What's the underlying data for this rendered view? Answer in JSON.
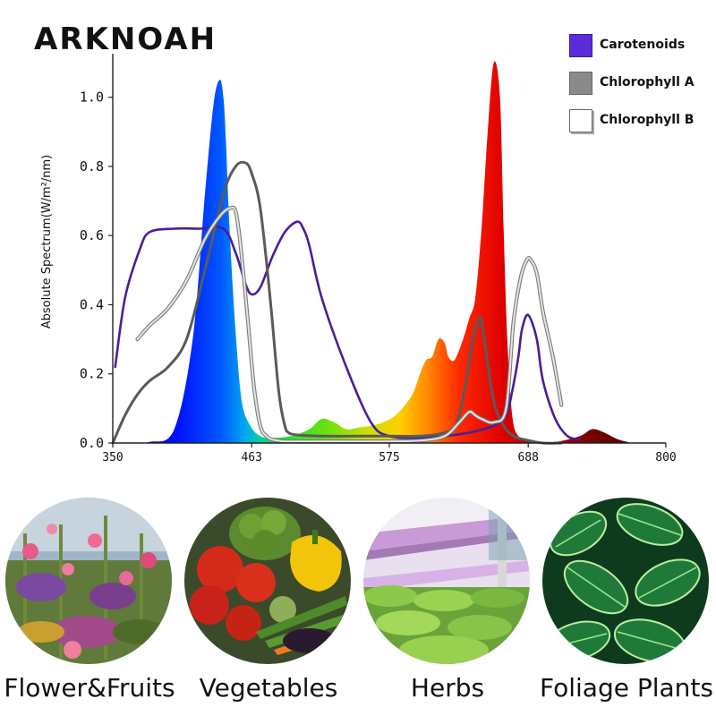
{
  "brand": "ARKNOAH",
  "legend": [
    {
      "label": "Carotenoids",
      "color": "#5a2bd8"
    },
    {
      "label": "Chlorophyll A",
      "color": "#8a8a8a"
    },
    {
      "label": "Chlorophyll B",
      "color": "#ffffff"
    }
  ],
  "categories": [
    {
      "label": "Flower&Fruits",
      "icon": "flower-photo"
    },
    {
      "label": "Vegetables",
      "icon": "vegetables-photo"
    },
    {
      "label": "Herbs",
      "icon": "herbs-photo"
    },
    {
      "label": "Foliage Plants",
      "icon": "foliage-photo"
    }
  ],
  "chart_data": {
    "type": "area",
    "title": "",
    "xlabel": "",
    "ylabel": "Absolute Spectrum(W/m²/nm)",
    "xlim": [
      350,
      800
    ],
    "ylim": [
      0,
      1.1
    ],
    "x_ticks": [
      "350",
      "463",
      "575",
      "688",
      "800"
    ],
    "y_ticks": [
      "0.0",
      "0.2",
      "0.4",
      "0.6",
      "0.8",
      "1.0"
    ],
    "grid": false,
    "legend_position": "top-right",
    "series": [
      {
        "name": "",
        "kind": "led-spectrum-fill",
        "x": [
          360,
          380,
          400,
          415,
          425,
          432,
          437,
          440,
          442,
          445,
          450,
          455,
          462,
          470,
          480,
          495,
          510,
          520,
          530,
          540,
          550,
          560,
          570,
          580,
          590,
          595,
          600,
          605,
          610,
          615,
          620,
          623,
          628,
          635,
          640,
          645,
          650,
          655,
          660,
          665,
          668,
          671,
          675,
          680,
          688,
          695,
          710,
          730,
          740,
          750,
          760,
          770
        ],
        "y": [
          0,
          0.003,
          0.04,
          0.3,
          0.72,
          0.98,
          1.05,
          1.0,
          0.88,
          0.62,
          0.32,
          0.12,
          0.05,
          0.02,
          0.015,
          0.02,
          0.04,
          0.07,
          0.06,
          0.04,
          0.045,
          0.05,
          0.06,
          0.08,
          0.12,
          0.15,
          0.2,
          0.24,
          0.25,
          0.3,
          0.29,
          0.25,
          0.24,
          0.3,
          0.36,
          0.42,
          0.62,
          0.9,
          1.1,
          1.0,
          0.62,
          0.3,
          0.08,
          0.02,
          0.01,
          0.005,
          0.003,
          0.02,
          0.04,
          0.03,
          0.012,
          0.002
        ]
      },
      {
        "name": "Carotenoids",
        "x": [
          352,
          360,
          372,
          380,
          400,
          420,
          440,
          450,
          458,
          463,
          470,
          480,
          490,
          500,
          505,
          510,
          520,
          540,
          560,
          575,
          600,
          620,
          640,
          660,
          670,
          675,
          680,
          683,
          688,
          695,
          700,
          710,
          720,
          730
        ],
        "y": [
          0.22,
          0.42,
          0.56,
          0.61,
          0.62,
          0.62,
          0.62,
          0.55,
          0.46,
          0.43,
          0.45,
          0.54,
          0.61,
          0.64,
          0.62,
          0.57,
          0.42,
          0.22,
          0.06,
          0.02,
          0.015,
          0.02,
          0.03,
          0.05,
          0.08,
          0.15,
          0.25,
          0.33,
          0.37,
          0.3,
          0.18,
          0.07,
          0.02,
          0.01
        ]
      },
      {
        "name": "Chlorophyll A",
        "x": [
          350,
          360,
          370,
          380,
          395,
          410,
          425,
          440,
          450,
          458,
          463,
          470,
          478,
          485,
          490,
          493,
          497,
          505,
          520,
          550,
          575,
          600,
          620,
          630,
          637,
          643,
          648,
          650,
          653,
          660,
          668,
          676,
          685,
          700,
          715
        ],
        "y": [
          0.0,
          0.08,
          0.14,
          0.18,
          0.22,
          0.3,
          0.5,
          0.72,
          0.8,
          0.81,
          0.78,
          0.68,
          0.42,
          0.15,
          0.05,
          0.03,
          0.025,
          0.022,
          0.02,
          0.02,
          0.02,
          0.02,
          0.03,
          0.06,
          0.17,
          0.3,
          0.36,
          0.35,
          0.28,
          0.12,
          0.05,
          0.02,
          0.01,
          0.0,
          0.0
        ]
      },
      {
        "name": "Chlorophyll B",
        "x": [
          370,
          380,
          395,
          410,
          425,
          438,
          446,
          450,
          453,
          456,
          460,
          465,
          470,
          475,
          480,
          490,
          510,
          550,
          575,
          600,
          620,
          632,
          640,
          645,
          650,
          660,
          670,
          676,
          682,
          687,
          690,
          695,
          700,
          708,
          715
        ],
        "y": [
          0.3,
          0.34,
          0.39,
          0.47,
          0.59,
          0.66,
          0.68,
          0.67,
          0.6,
          0.5,
          0.35,
          0.16,
          0.05,
          0.02,
          0.01,
          0.005,
          0.005,
          0.005,
          0.005,
          0.007,
          0.02,
          0.06,
          0.09,
          0.08,
          0.07,
          0.06,
          0.1,
          0.35,
          0.48,
          0.53,
          0.53,
          0.49,
          0.38,
          0.25,
          0.11
        ]
      }
    ]
  }
}
